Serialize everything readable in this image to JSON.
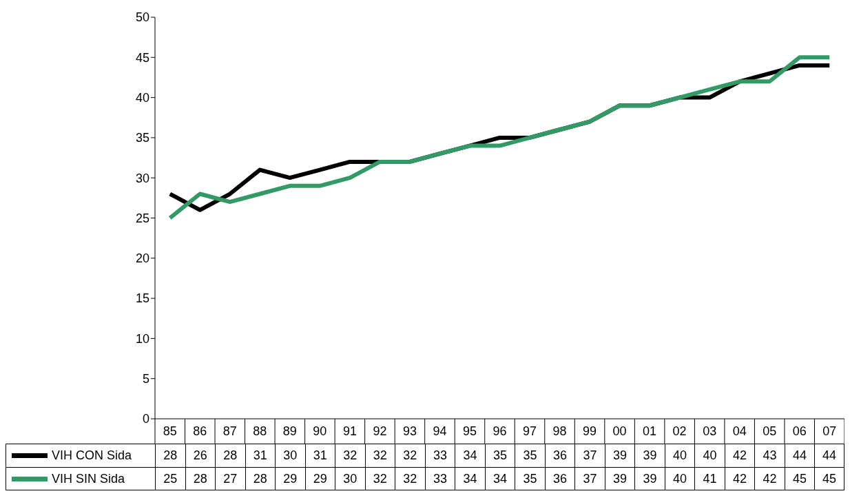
{
  "chart_data": {
    "type": "line",
    "categories": [
      "85",
      "86",
      "87",
      "88",
      "89",
      "90",
      "91",
      "92",
      "93",
      "94",
      "95",
      "96",
      "97",
      "98",
      "99",
      "00",
      "01",
      "02",
      "03",
      "04",
      "05",
      "06",
      "07"
    ],
    "series": [
      {
        "name": "VIH CON Sida",
        "color": "#000000",
        "values": [
          28,
          26,
          28,
          31,
          30,
          31,
          32,
          32,
          32,
          33,
          34,
          35,
          35,
          36,
          37,
          39,
          39,
          40,
          40,
          42,
          43,
          44,
          44
        ]
      },
      {
        "name": "VIH SIN Sida",
        "color": "#339966",
        "values": [
          25,
          28,
          27,
          28,
          29,
          29,
          30,
          32,
          32,
          33,
          34,
          34,
          35,
          36,
          37,
          39,
          39,
          40,
          41,
          42,
          42,
          45,
          45
        ]
      }
    ],
    "ylim": [
      0,
      50
    ],
    "yticks": [
      0,
      5,
      10,
      15,
      20,
      25,
      30,
      35,
      40,
      45,
      50
    ],
    "grid": false,
    "legend": "bottom left",
    "data_labels": true,
    "marker": "none",
    "line_style": "solid"
  }
}
